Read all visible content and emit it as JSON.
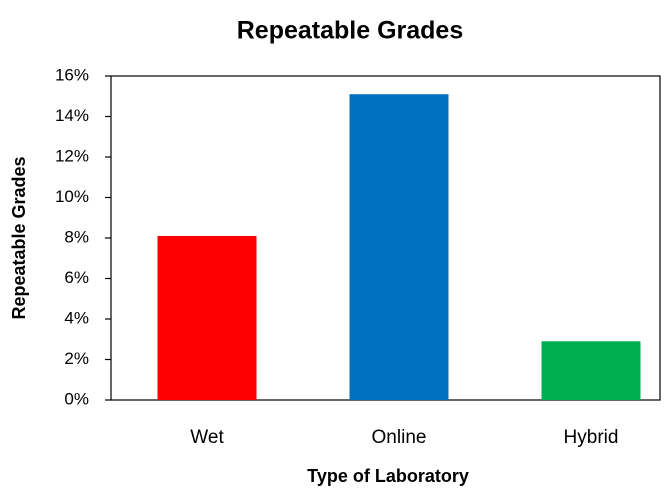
{
  "chart_data": {
    "type": "bar",
    "title": "Repeatable Grades",
    "x_label": "Type of Laboratory",
    "y_label": "Repeatable Grades",
    "categories": [
      "Wet",
      "Online",
      "Hybrid"
    ],
    "values": [
      8.1,
      15.1,
      2.9
    ],
    "colors": [
      "#ff0000",
      "#0070c0",
      "#00b050"
    ],
    "ylim": [
      0,
      16
    ],
    "yticks": [
      {
        "value": 0,
        "label": "0%"
      },
      {
        "value": 2,
        "label": "2%"
      },
      {
        "value": 4,
        "label": "4%"
      },
      {
        "value": 6,
        "label": "6%"
      },
      {
        "value": 8,
        "label": "8%"
      },
      {
        "value": 10,
        "label": "10%"
      },
      {
        "value": 12,
        "label": "12%"
      },
      {
        "value": 14,
        "label": "14%"
      },
      {
        "value": 16,
        "label": "16%"
      }
    ],
    "grid": false
  }
}
